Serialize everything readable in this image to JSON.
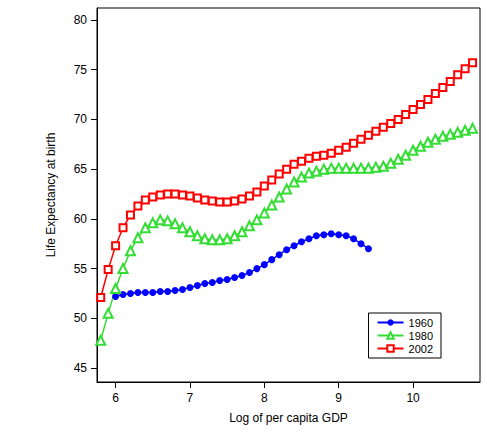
{
  "chart_data": {
    "type": "line",
    "x_label": "Log of per capita GDP",
    "y_label": "Life Expectancy at birth",
    "x": [
      5.8,
      5.9,
      6.0,
      6.1,
      6.2,
      6.3,
      6.4,
      6.5,
      6.6,
      6.7,
      6.8,
      6.9,
      7.0,
      7.1,
      7.2,
      7.3,
      7.4,
      7.5,
      7.6,
      7.7,
      7.8,
      7.9,
      8.0,
      8.1,
      8.2,
      8.3,
      8.4,
      8.5,
      8.6,
      8.7,
      8.8,
      8.9,
      9.0,
      9.1,
      9.2,
      9.3,
      9.4,
      9.5,
      9.6,
      9.7,
      9.8,
      9.9,
      10.0,
      10.1,
      10.2,
      10.3,
      10.4,
      10.5,
      10.6,
      10.7,
      10.8
    ],
    "series": [
      {
        "name": "1960",
        "color": "#0000ff",
        "marker": "filled_circle",
        "values": [
          null,
          null,
          52.2,
          52.4,
          52.5,
          52.6,
          52.6,
          52.6,
          52.7,
          52.7,
          52.8,
          52.9,
          53.1,
          53.3,
          53.5,
          53.6,
          53.8,
          53.9,
          54.1,
          54.3,
          54.6,
          55.0,
          55.4,
          55.9,
          56.4,
          56.9,
          57.3,
          57.7,
          58.0,
          58.3,
          58.4,
          58.5,
          58.4,
          58.3,
          58.0,
          57.5,
          57.0,
          null,
          null,
          null,
          null,
          null,
          null,
          null,
          null,
          null,
          null,
          null,
          null,
          null,
          null
        ]
      },
      {
        "name": "1980",
        "color": "#33dd33",
        "marker": "open_triangle",
        "values": [
          47.8,
          50.5,
          53.0,
          55.0,
          56.8,
          58.1,
          59.1,
          59.6,
          59.9,
          59.8,
          59.5,
          59.1,
          58.7,
          58.3,
          58.0,
          57.9,
          57.9,
          58.0,
          58.3,
          58.7,
          59.3,
          59.9,
          60.6,
          61.4,
          62.2,
          63.0,
          63.7,
          64.2,
          64.6,
          64.8,
          65.0,
          65.1,
          65.1,
          65.1,
          65.1,
          65.1,
          65.1,
          65.2,
          65.3,
          65.6,
          66.0,
          66.4,
          66.9,
          67.3,
          67.7,
          68.0,
          68.3,
          68.5,
          68.7,
          68.9,
          69.1
        ]
      },
      {
        "name": "2002",
        "color": "#ff0000",
        "marker": "open_square",
        "values": [
          52.1,
          54.9,
          57.3,
          59.1,
          60.4,
          61.3,
          61.9,
          62.2,
          62.4,
          62.5,
          62.5,
          62.4,
          62.3,
          62.1,
          61.9,
          61.8,
          61.7,
          61.7,
          61.8,
          62.0,
          62.3,
          62.7,
          63.3,
          63.9,
          64.5,
          65.0,
          65.5,
          65.8,
          66.1,
          66.3,
          66.4,
          66.6,
          66.9,
          67.2,
          67.6,
          68.0,
          68.4,
          68.8,
          69.2,
          69.6,
          70.0,
          70.5,
          71.0,
          71.5,
          72.0,
          72.6,
          73.2,
          73.8,
          74.5,
          75.1,
          75.7
        ]
      }
    ],
    "xlim": [
      5.75,
      10.9
    ],
    "xticks": [
      6,
      7,
      8,
      9,
      10
    ],
    "ylim": [
      43.6,
      81.2
    ],
    "yticks": [
      45,
      50,
      55,
      60,
      65,
      70,
      75,
      80
    ],
    "grid": false,
    "legend": "bottom-right"
  }
}
